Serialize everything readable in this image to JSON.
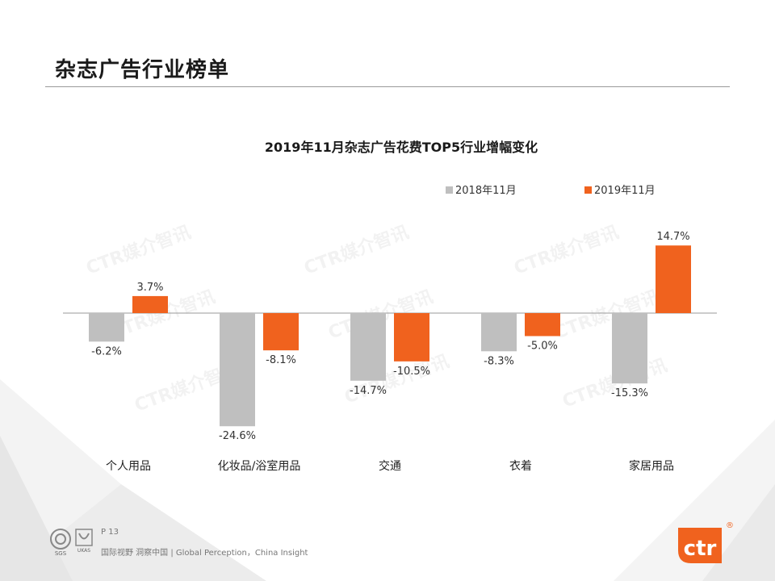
{
  "header": {
    "title": "杂志广告行业榜单"
  },
  "watermark": {
    "text": "CTR媒介智讯"
  },
  "chart_data": {
    "type": "bar",
    "title": "2019年11月杂志广告花费TOP5行业增幅变化",
    "categories": [
      "个人用品",
      "化妆品/浴室用品",
      "交通",
      "衣着",
      "家居用品"
    ],
    "series": [
      {
        "name": "2018年11月",
        "color": "#BFBFBF",
        "values": [
          -6.2,
          -24.6,
          -14.7,
          -8.3,
          -15.3
        ]
      },
      {
        "name": "2019年11月",
        "color": "#F0621E",
        "values": [
          3.7,
          -8.1,
          -10.5,
          -5.0,
          14.7
        ]
      }
    ],
    "value_suffix": "%",
    "xlabel": "",
    "ylabel": "",
    "ylim": [
      -25,
      15
    ],
    "legend_position": "top-right",
    "grid": false
  },
  "footer": {
    "page_label": "P 13",
    "slogan": "国际视野 洞察中国 | Global Perception，China Insight",
    "logo_text": "ctr",
    "logo_mark": "®",
    "cert_sgs": "SGS",
    "cert_ukas": "UKAS"
  }
}
